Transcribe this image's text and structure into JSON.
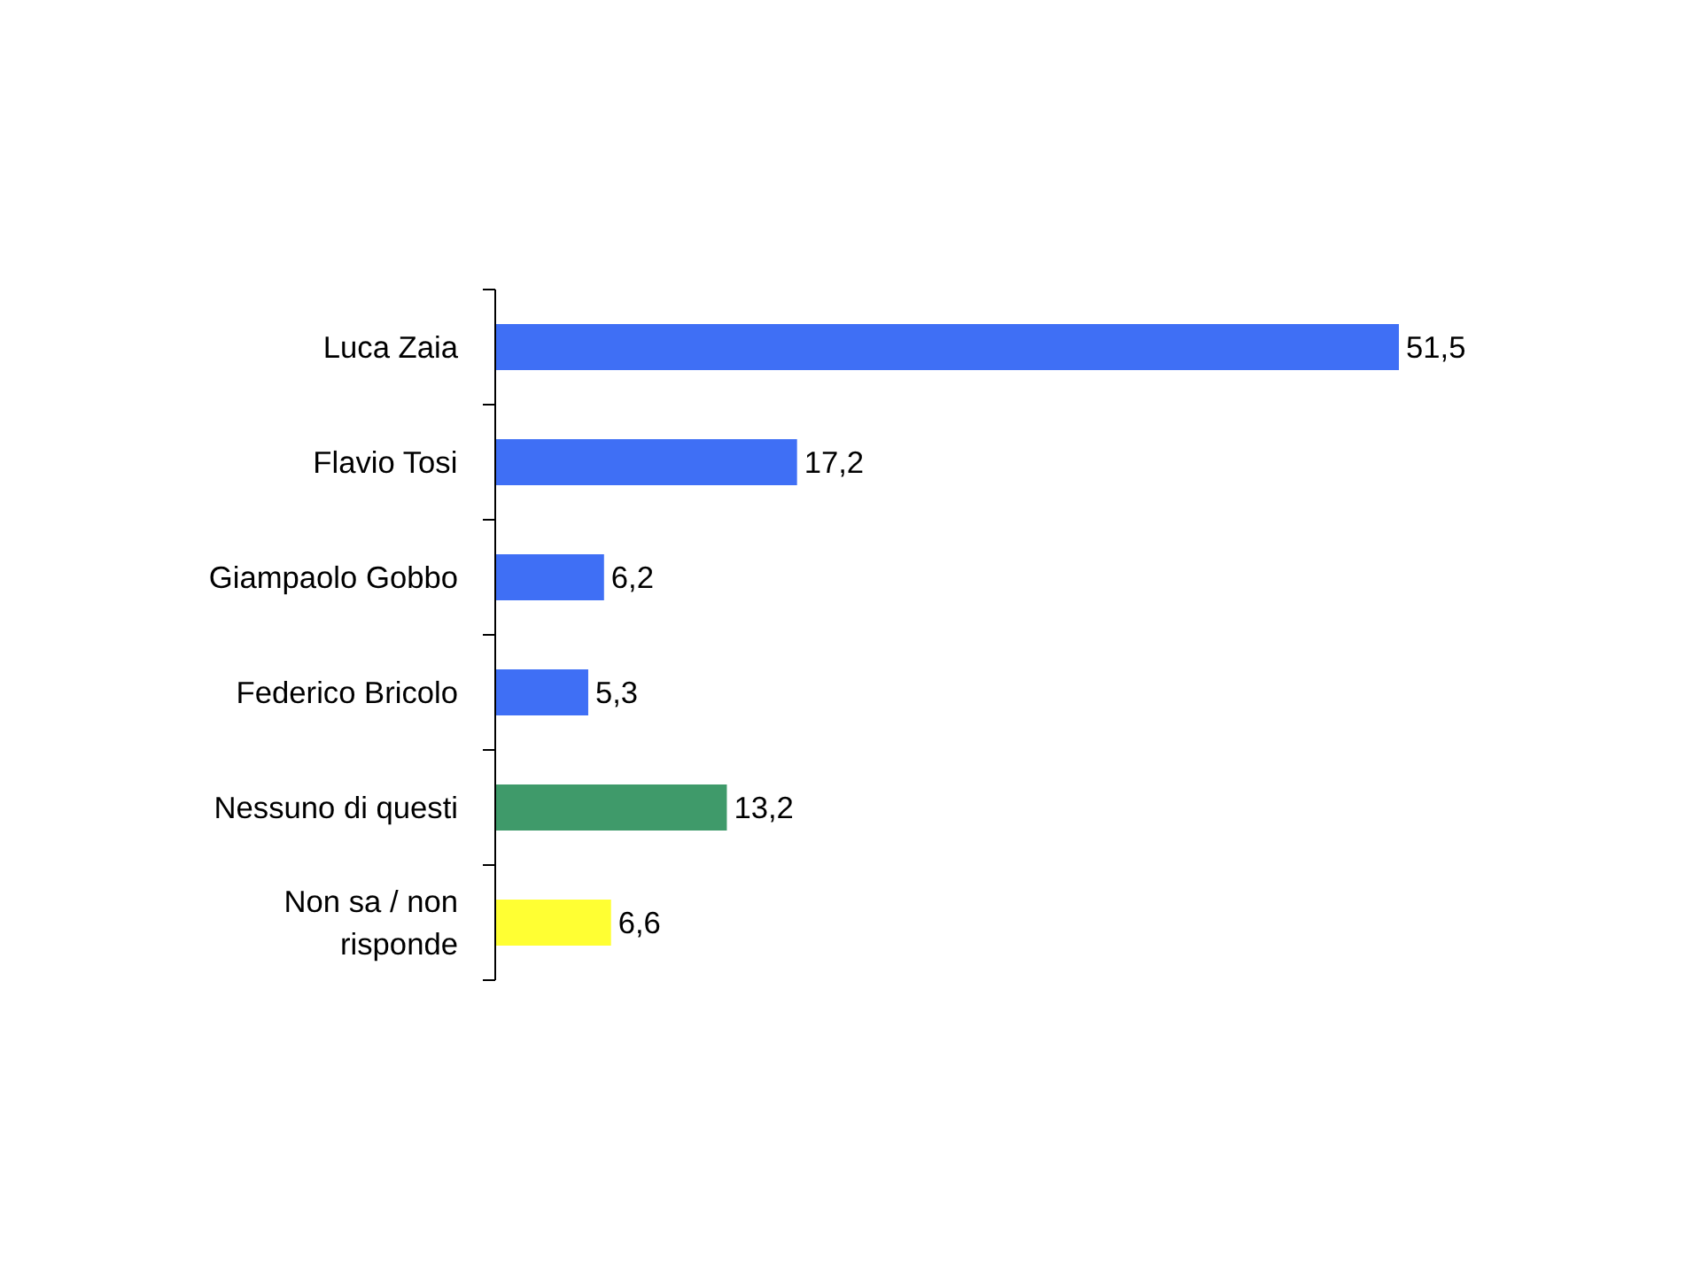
{
  "chart_data": {
    "type": "bar",
    "orientation": "horizontal",
    "categories": [
      "Luca Zaia",
      "Flavio Tosi",
      "Giampaolo Gobbo",
      "Federico Bricolo",
      "Nessuno di questi",
      "Non sa / non risponde"
    ],
    "values": [
      51.5,
      17.2,
      6.2,
      5.3,
      13.2,
      6.6
    ],
    "value_labels": [
      "51,5",
      "17,2",
      "6,2",
      "5,3",
      "13,2",
      "6,6"
    ],
    "colors": [
      "#3f6ff5",
      "#3f6ff5",
      "#3f6ff5",
      "#3f6ff5",
      "#3f9a6a",
      "#ffff33"
    ],
    "grid": false
  }
}
